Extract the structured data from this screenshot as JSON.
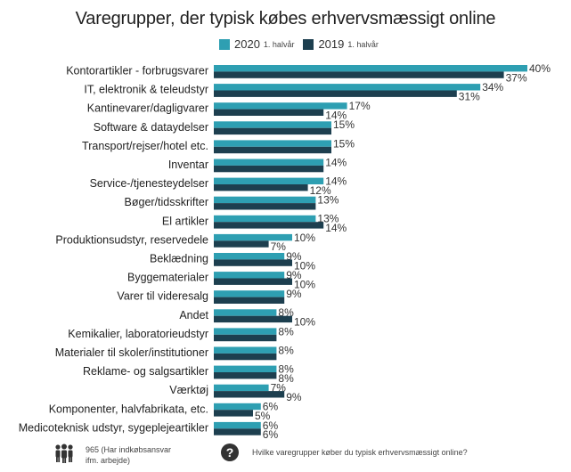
{
  "title": "Varegrupper, der typisk købes erhvervsmæssigt online",
  "legend": {
    "s2020_label": "2020",
    "s2020_sub": "1. halvår",
    "s2019_label": "2019",
    "s2019_sub": "1. halvår"
  },
  "colors": {
    "s2020": "#2e9fb2",
    "s2019": "#1d3f4f"
  },
  "chart_data": {
    "type": "bar",
    "orientation": "horizontal",
    "categories": [
      "Kontorartikler - forbrugsvarer",
      "IT, elektronik & teleudstyr",
      "Kantinevarer/dagligvarer",
      "Software & dataydelser",
      "Transport/rejser/hotel etc.",
      "Inventar",
      "Service-/tjenesteydelser",
      "Bøger/tidsskrifter",
      "El artikler",
      "Produktionsudstyr, reservedele",
      "Beklædning",
      "Byggematerialer",
      "Varer til videresalg",
      "Andet",
      "Kemikalier, laboratorieudstyr",
      "Materialer til skoler/institutioner",
      "Reklame- og salgsartikler",
      "Værktøj",
      "Komponenter, halvfabrikata, etc.",
      "Medicoteknisk udstyr, sygeplejeartikler"
    ],
    "series": [
      {
        "name": "2020 1. halvår",
        "values": [
          40,
          34,
          17,
          15,
          15,
          14,
          14,
          13,
          13,
          10,
          9,
          9,
          9,
          8,
          8,
          8,
          8,
          7,
          6,
          6
        ]
      },
      {
        "name": "2019 1. halvår",
        "values": [
          37,
          31,
          14,
          15,
          15,
          14,
          12,
          13,
          14,
          7,
          10,
          10,
          9,
          10,
          8,
          8,
          8,
          9,
          5,
          6
        ]
      }
    ],
    "value_labels": [
      [
        "40%",
        "34%",
        "17%",
        "15%",
        "15%",
        "14%",
        "14%",
        "13%",
        "13%",
        "10%",
        "9%",
        "9%",
        "9%",
        "8%",
        "8%",
        "8%",
        "8%",
        "7%",
        "6%",
        "6%"
      ],
      [
        "37%",
        "31%",
        "14%",
        "",
        "",
        "",
        "12%",
        "",
        "14%",
        "7%",
        "10%",
        "10%",
        "",
        "10%",
        "",
        "",
        "8%",
        "9%",
        "5%",
        "6%"
      ]
    ],
    "xlim": [
      0,
      40
    ]
  },
  "footer": {
    "respondents": "965 (Har indkøbsansvar",
    "respondents_2": "ifm. arbejde)",
    "question": "Hvilke varegrupper køber du typisk erhvervsmæssigt online?"
  }
}
